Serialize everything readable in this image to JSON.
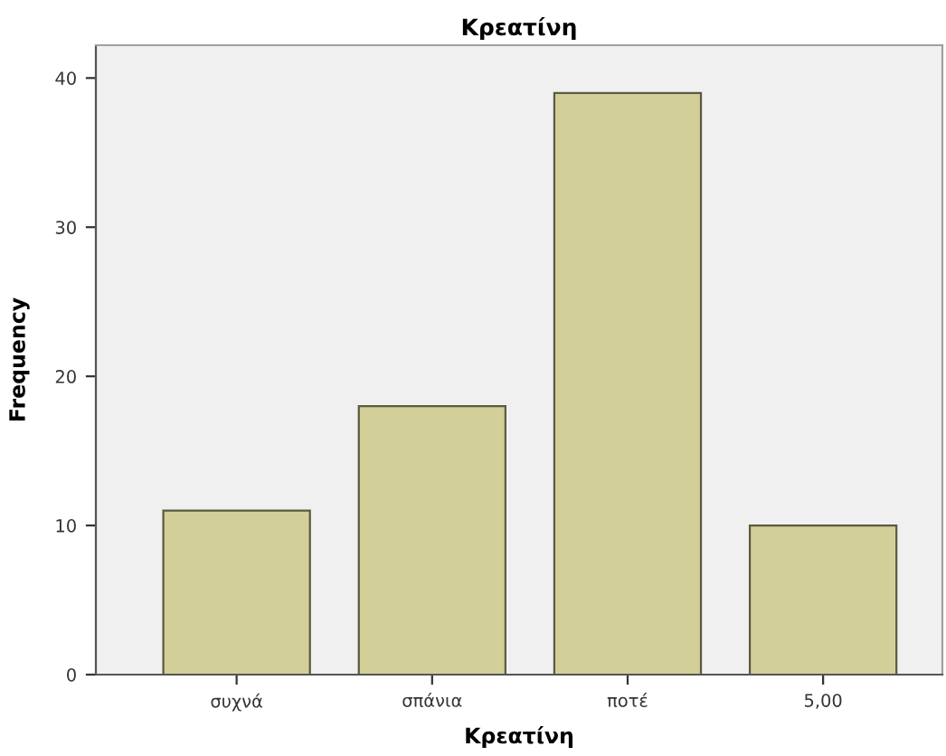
{
  "chart_data": {
    "type": "bar",
    "title": "Κρεατίνη",
    "xlabel": "Κρεατίνη",
    "ylabel": "Frequency",
    "categories": [
      "συχνά",
      "σπάνια",
      "ποτέ",
      "5,00"
    ],
    "values": [
      11,
      18,
      39,
      10
    ],
    "color": "#d3cf98",
    "ylim": [
      0,
      42.2
    ],
    "yticks": [
      0,
      10,
      20,
      30,
      40
    ],
    "grid": false,
    "legend": false
  }
}
